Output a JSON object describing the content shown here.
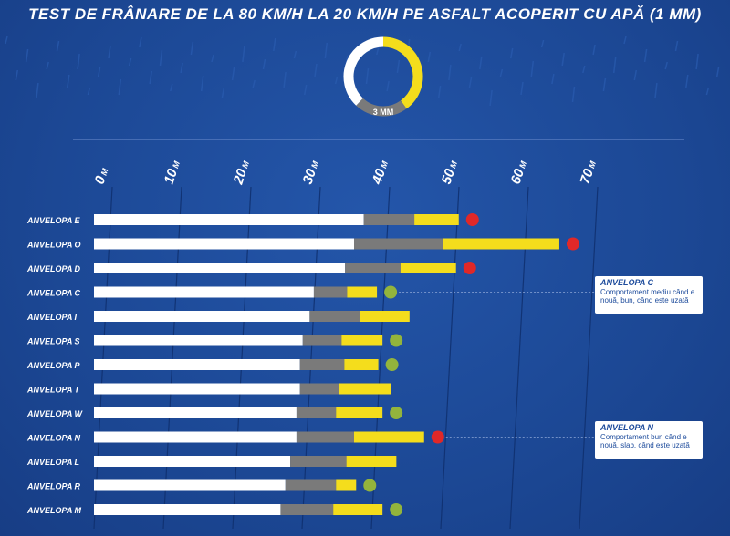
{
  "title": "TEST DE FRÂNARE DE LA 80 KM/H LA 20 KM/H PE ASFALT ACOPERIT CU APĂ (1 MM)",
  "gauge": {
    "label": "3 MM",
    "segments": [
      {
        "name": "yellow",
        "fraction": 0.4
      },
      {
        "name": "gray",
        "fraction": 0.22
      },
      {
        "name": "white",
        "fraction": 0.38
      }
    ]
  },
  "colors": {
    "background": "#1e4c9c",
    "white_segment": "#ffffff",
    "gray_segment": "#7a7a7a",
    "yellow_segment": "#f4dd1c",
    "red_dot": "#e02828",
    "green_dot": "#93b43c",
    "grid": "#0f2f6e"
  },
  "notes": [
    {
      "title": "ANVELOPA C",
      "text": "Comportament mediu când e nouă, bun, când este uzată",
      "tire": "ANVELOPA C"
    },
    {
      "title": "ANVELOPA N",
      "text": "Comportament bun când e nouă, slab, când este uzată",
      "tire": "ANVELOPA N"
    }
  ],
  "chart_data": {
    "type": "bar",
    "orientation": "horizontal-stacked",
    "title": "TEST DE FRÂNARE DE LA 80 KM/H LA 20 KM/H PE ASFALT ACOPERIT CU APĂ (1 MM)",
    "x_ticks": [
      {
        "value": 0,
        "num": "0",
        "unit": "M"
      },
      {
        "value": 10,
        "num": "10",
        "unit": "M"
      },
      {
        "value": 20,
        "num": "20",
        "unit": "M"
      },
      {
        "value": 30,
        "num": "30",
        "unit": "M"
      },
      {
        "value": 40,
        "num": "40",
        "unit": "M"
      },
      {
        "value": 50,
        "num": "50",
        "unit": "M"
      },
      {
        "value": 60,
        "num": "60",
        "unit": "M"
      },
      {
        "value": 70,
        "num": "70",
        "unit": "M"
      }
    ],
    "xlim": [
      0,
      70
    ],
    "series_names": [
      "white",
      "gray",
      "yellow"
    ],
    "rows": [
      {
        "label": "ANVELOPA E",
        "white": 38.9,
        "gray": 7.3,
        "yellow": 6.4,
        "dot": "red"
      },
      {
        "label": "ANVELOPA O",
        "white": 37.5,
        "gray": 12.8,
        "yellow": 16.8,
        "dot": "red"
      },
      {
        "label": "ANVELOPA D",
        "white": 36.2,
        "gray": 8.0,
        "yellow": 8.0,
        "dot": "red"
      },
      {
        "label": "ANVELOPA C",
        "white": 31.7,
        "gray": 4.8,
        "yellow": 4.3,
        "dot": "green"
      },
      {
        "label": "ANVELOPA I",
        "white": 31.1,
        "gray": 7.2,
        "yellow": 7.2,
        "dot": "none"
      },
      {
        "label": "ANVELOPA S",
        "white": 30.1,
        "gray": 5.6,
        "yellow": 5.9,
        "dot": "green"
      },
      {
        "label": "ANVELOPA P",
        "white": 29.7,
        "gray": 6.4,
        "yellow": 4.9,
        "dot": "green"
      },
      {
        "label": "ANVELOPA T",
        "white": 29.7,
        "gray": 5.6,
        "yellow": 7.5,
        "dot": "none"
      },
      {
        "label": "ANVELOPA W",
        "white": 29.2,
        "gray": 5.7,
        "yellow": 6.7,
        "dot": "green"
      },
      {
        "label": "ANVELOPA N",
        "white": 29.2,
        "gray": 8.3,
        "yellow": 10.1,
        "dot": "red"
      },
      {
        "label": "ANVELOPA L",
        "white": 28.3,
        "gray": 8.1,
        "yellow": 7.2,
        "dot": "none"
      },
      {
        "label": "ANVELOPA R",
        "white": 27.6,
        "gray": 7.3,
        "yellow": 2.9,
        "dot": "green"
      },
      {
        "label": "ANVELOPA M",
        "white": 26.9,
        "gray": 7.6,
        "yellow": 7.1,
        "dot": "green"
      }
    ]
  }
}
